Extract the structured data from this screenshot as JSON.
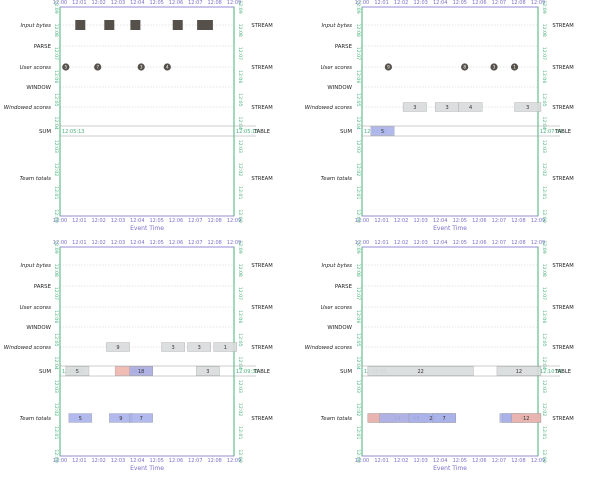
{
  "stage_labels": {
    "input": "Input bytes",
    "parse": "PARSE",
    "user": "User scores",
    "window": "WINDOW",
    "windowed": "Windowed scores",
    "sum": "SUM",
    "team": "Team totals"
  },
  "kind_labels": {
    "stream": "STREAM",
    "table": "TABLE"
  },
  "axis_title": "Event Time",
  "colors": {
    "axis_time": "#7a6fc9",
    "axis_proc": "#46b07a",
    "element_dark": "#55504a",
    "pane_fill": "#d9dcdc",
    "pane_blue": "#aab2ea",
    "pane_red": "#f0b5ab",
    "grid": "#c9c9c9"
  },
  "panels": [
    {
      "name": "panel-top-left",
      "watermark": "12:05:13",
      "elements": [
        {
          "stage": "input",
          "shape": "square",
          "t": 12.35
        },
        {
          "stage": "input",
          "shape": "square",
          "t": 12.85
        },
        {
          "stage": "input",
          "shape": "square",
          "t": 13.3
        },
        {
          "stage": "input",
          "shape": "square",
          "t": 14.03
        },
        {
          "stage": "input",
          "shape": "square",
          "t": 14.45
        },
        {
          "stage": "input",
          "shape": "square",
          "t": 14.55
        },
        {
          "stage": "user",
          "shape": "circle",
          "t": 12.1,
          "v": "5"
        },
        {
          "stage": "user",
          "shape": "circle",
          "t": 12.65,
          "v": "7"
        },
        {
          "stage": "user",
          "shape": "circle",
          "t": 13.4,
          "v": "3"
        },
        {
          "stage": "user",
          "shape": "circle",
          "t": 13.85,
          "v": "4"
        }
      ]
    },
    {
      "name": "panel-top-right",
      "watermark": "12:07:39",
      "elements": [
        {
          "stage": "user",
          "shape": "circle",
          "t": 12.45,
          "v": "9"
        },
        {
          "stage": "user",
          "shape": "circle",
          "t": 13.75,
          "v": "8"
        },
        {
          "stage": "user",
          "shape": "circle",
          "t": 14.25,
          "v": "3"
        },
        {
          "stage": "user",
          "shape": "circle",
          "t": 14.6,
          "v": "1"
        },
        {
          "stage": "windowed",
          "shape": "pane",
          "t0": 12.7,
          "t1": 13.1,
          "v": "3",
          "fill": "pane_fill"
        },
        {
          "stage": "windowed",
          "shape": "pane",
          "t0": 13.25,
          "t1": 13.65,
          "v": "3",
          "fill": "pane_fill"
        },
        {
          "stage": "windowed",
          "shape": "pane",
          "t0": 13.65,
          "t1": 14.05,
          "v": "4",
          "fill": "pane_fill"
        },
        {
          "stage": "windowed",
          "shape": "pane",
          "t0": 14.6,
          "t1": 15.05,
          "v": "3",
          "fill": "pane_fill"
        },
        {
          "stage": "sum",
          "shape": "pane",
          "t0": 12.15,
          "t1": 12.55,
          "v": "5",
          "fill": "pane_blue"
        }
      ]
    },
    {
      "name": "panel-bottom-left",
      "watermark": "12:09:33",
      "elements": [
        {
          "stage": "windowed",
          "shape": "pane",
          "t0": 12.8,
          "t1": 13.2,
          "v": "9",
          "fill": "pane_fill"
        },
        {
          "stage": "windowed",
          "shape": "pane",
          "t0": 13.75,
          "t1": 14.15,
          "v": "3",
          "fill": "pane_fill"
        },
        {
          "stage": "windowed",
          "shape": "pane",
          "t0": 14.2,
          "t1": 14.6,
          "v": "3",
          "fill": "pane_fill"
        },
        {
          "stage": "windowed",
          "shape": "pane",
          "t0": 14.65,
          "t1": 15.05,
          "v": "1",
          "fill": "pane_fill"
        },
        {
          "stage": "sum",
          "shape": "pane",
          "t0": 12.1,
          "t1": 12.5,
          "v": "5",
          "fill": "pane_fill"
        },
        {
          "stage": "sum",
          "shape": "pane",
          "t0": 12.95,
          "t1": 13.6,
          "v": "14",
          "fill": "pane_red"
        },
        {
          "stage": "sum",
          "shape": "pane",
          "t0": 13.2,
          "t1": 13.6,
          "v": "18",
          "fill": "pane_blue"
        },
        {
          "stage": "sum",
          "shape": "pane",
          "t0": 14.35,
          "t1": 14.75,
          "v": "3",
          "fill": "pane_fill"
        },
        {
          "stage": "team",
          "shape": "pane",
          "t0": 12.15,
          "t1": 12.55,
          "v": "5",
          "fill": "pane_blue"
        },
        {
          "stage": "team",
          "shape": "pane",
          "t0": 12.85,
          "t1": 13.25,
          "v": "9",
          "fill": "pane_blue"
        },
        {
          "stage": "team",
          "shape": "pane",
          "t0": 13.2,
          "t1": 13.6,
          "v": "7",
          "fill": "pane_blue"
        }
      ]
    },
    {
      "name": "panel-bottom-right",
      "watermark": "12:10:36",
      "elements": [
        {
          "stage": "sum",
          "shape": "pane",
          "t0": 12.1,
          "t1": 13.9,
          "v": "22",
          "fill": "pane_fill"
        },
        {
          "stage": "sum",
          "shape": "pane",
          "t0": 14.3,
          "t1": 15.05,
          "v": "12",
          "fill": "pane_fill"
        },
        {
          "stage": "team",
          "shape": "pane",
          "t0": 12.1,
          "t1": 12.55,
          "v": "5",
          "fill": "pane_blue"
        },
        {
          "stage": "team",
          "shape": "pane",
          "t0": 12.1,
          "t1": 13.1,
          "v": "14",
          "fill": "pane_red"
        },
        {
          "stage": "team",
          "shape": "pane",
          "t0": 12.3,
          "t1": 13.55,
          "v": "18",
          "fill": "pane_blue"
        },
        {
          "stage": "team",
          "shape": "pane",
          "t0": 12.8,
          "t1": 13.6,
          "v": "22",
          "fill": "pane_blue"
        },
        {
          "stage": "team",
          "shape": "pane",
          "t0": 13.2,
          "t1": 13.6,
          "v": "7",
          "fill": "pane_blue"
        },
        {
          "stage": "team",
          "shape": "pane",
          "t0": 14.35,
          "t1": 14.75,
          "v": "3",
          "fill": "pane_blue"
        },
        {
          "stage": "team",
          "shape": "pane",
          "t0": 14.4,
          "t1": 15.05,
          "v": "4",
          "fill": "pane_blue"
        },
        {
          "stage": "team",
          "shape": "pane",
          "t0": 14.55,
          "t1": 15.05,
          "v": "12",
          "fill": "pane_red"
        }
      ]
    }
  ],
  "time_ticks": [
    "12:00",
    "12:01",
    "12:02",
    "12:03",
    "12:04",
    "12:05",
    "12:06",
    "12:07",
    "12:08",
    "12:09"
  ],
  "proc_ticks": [
    "12:00",
    "12:01",
    "12:02",
    "12:03",
    "12:04",
    "12:05",
    "12:06",
    "12:07",
    "12:08",
    "12:09"
  ]
}
